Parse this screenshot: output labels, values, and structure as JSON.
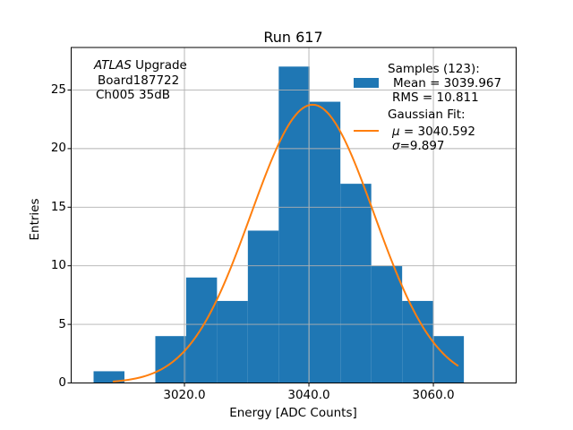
{
  "chart_data": {
    "type": "bar",
    "subtype": "histogram-with-gaussian-fit",
    "title": "Run 617",
    "xlabel": "Energy [ADC Counts]",
    "ylabel": "Entries",
    "bin_edges": [
      3005.4,
      3010.36,
      3015.32,
      3020.27,
      3025.23,
      3030.19,
      3035.15,
      3040.11,
      3045.06,
      3050.02,
      3054.98,
      3059.94,
      3064.9
    ],
    "counts": [
      1,
      0,
      4,
      9,
      7,
      13,
      27,
      24,
      17,
      10,
      7,
      4
    ],
    "total_samples": 123,
    "stats": {
      "mean": 3039.967,
      "rms": 10.811
    },
    "gaussian_fit": {
      "mu": 3040.592,
      "sigma": 9.897,
      "amplitude": 23.75,
      "x_start": 3008.6,
      "x_end": 3063.9
    },
    "xlim": [
      3001.8,
      3073.3
    ],
    "ylim": [
      0,
      28.63
    ],
    "xticks": [
      3020,
      3040,
      3060
    ],
    "xtick_labels": [
      "3020.0",
      "3040.0",
      "3060.0"
    ],
    "yticks": [
      0,
      5,
      10,
      15,
      20,
      25
    ],
    "ytick_labels": [
      "0",
      "5",
      "10",
      "15",
      "20",
      "25"
    ],
    "grid": true,
    "legend_position": "upper right",
    "colors": {
      "hist": "#1f77b4",
      "fit": "#ff7f0e",
      "grid": "#b0b0b0",
      "axis": "#000000"
    },
    "annotation": {
      "experiment_italic": "ATLAS",
      "experiment_rest": " Upgrade",
      "board": "Board187722",
      "channel": "Ch005 35dB"
    },
    "legend": {
      "samples_title": "Samples (123):",
      "mean_label": "Mean = 3039.967",
      "rms_label": "RMS = 10.811",
      "fit_title": "Gaussian Fit:",
      "mu_symbol": "μ",
      "mu_value": " = 3040.592",
      "sigma_symbol": "σ",
      "sigma_value": "=9.897"
    }
  }
}
